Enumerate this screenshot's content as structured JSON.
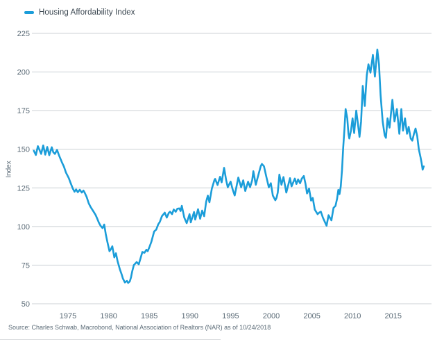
{
  "legend": {
    "label": "Housing Affordability Index"
  },
  "y_axis": {
    "title": "Index"
  },
  "source": "Source: Charles Schwab, Macrobond, National Association of Realtors (NAR) as of 10/24/2018",
  "colors": {
    "line": "#1b9dd9",
    "grid": "#ccd1d5",
    "tick_text": "#5a6a76",
    "legend_text": "#3a4650",
    "source_text": "#5a6a76"
  },
  "chart_data": {
    "type": "line",
    "title": "Housing Affordability Index",
    "xlabel": "",
    "ylabel": "Index",
    "legend_position": "top-left",
    "grid": "horizontal-only",
    "xlim": [
      1970.8,
      2019.3
    ],
    "ylim": [
      50,
      225
    ],
    "x_ticks": [
      1975,
      1980,
      1985,
      1990,
      1995,
      2000,
      2005,
      2010,
      2015
    ],
    "y_ticks": [
      50,
      75,
      100,
      125,
      150,
      175,
      200,
      225
    ],
    "source": "Source: Charles Schwab, Macrobond, National Association of Realtors (NAR) as of 10/24/2018",
    "series": [
      {
        "name": "Housing Affordability Index",
        "points": [
          [
            1970.8,
            149
          ],
          [
            1971.05,
            146.3
          ],
          [
            1971.3,
            152
          ],
          [
            1971.7,
            147
          ],
          [
            1971.95,
            152.5
          ],
          [
            1972.2,
            146.5
          ],
          [
            1972.45,
            151.5
          ],
          [
            1972.7,
            146.2
          ],
          [
            1973.0,
            151.3
          ],
          [
            1973.2,
            148
          ],
          [
            1973.4,
            147
          ],
          [
            1973.65,
            149.6
          ],
          [
            1973.9,
            146
          ],
          [
            1974.1,
            143.5
          ],
          [
            1974.25,
            141.6
          ],
          [
            1974.5,
            138.8
          ],
          [
            1974.75,
            134.9
          ],
          [
            1975.1,
            131.3
          ],
          [
            1975.3,
            128.5
          ],
          [
            1975.6,
            124.5
          ],
          [
            1975.8,
            122.5
          ],
          [
            1976.0,
            124
          ],
          [
            1976.2,
            122.2
          ],
          [
            1976.45,
            123.8
          ],
          [
            1976.7,
            122
          ],
          [
            1976.9,
            123.3
          ],
          [
            1977.05,
            122
          ],
          [
            1977.3,
            119
          ],
          [
            1977.55,
            115
          ],
          [
            1977.8,
            112.5
          ],
          [
            1978.15,
            109.6
          ],
          [
            1978.4,
            107.5
          ],
          [
            1978.6,
            105
          ],
          [
            1978.8,
            102.5
          ],
          [
            1979.0,
            100.5
          ],
          [
            1979.25,
            99
          ],
          [
            1979.45,
            101.3
          ],
          [
            1979.65,
            95
          ],
          [
            1979.85,
            90
          ],
          [
            1980.1,
            84
          ],
          [
            1980.3,
            85.5
          ],
          [
            1980.45,
            87.2
          ],
          [
            1980.7,
            80
          ],
          [
            1980.9,
            82.7
          ],
          [
            1981.1,
            77.5
          ],
          [
            1981.4,
            72
          ],
          [
            1981.6,
            69
          ],
          [
            1981.75,
            66.4
          ],
          [
            1982.0,
            63.8
          ],
          [
            1982.25,
            64.8
          ],
          [
            1982.4,
            63.5
          ],
          [
            1982.6,
            64.5
          ],
          [
            1982.75,
            67
          ],
          [
            1982.9,
            71
          ],
          [
            1983.1,
            75
          ],
          [
            1983.45,
            77
          ],
          [
            1983.7,
            75.5
          ],
          [
            1983.9,
            79
          ],
          [
            1984.15,
            83.5
          ],
          [
            1984.4,
            83
          ],
          [
            1984.65,
            85
          ],
          [
            1984.8,
            84
          ],
          [
            1985.0,
            86.5
          ],
          [
            1985.25,
            90
          ],
          [
            1985.6,
            96.8
          ],
          [
            1985.85,
            98
          ],
          [
            1986.1,
            101.4
          ],
          [
            1986.3,
            103
          ],
          [
            1986.55,
            106.7
          ],
          [
            1986.9,
            109
          ],
          [
            1987.15,
            105.8
          ],
          [
            1987.4,
            108.8
          ],
          [
            1987.55,
            109.6
          ],
          [
            1987.8,
            108
          ],
          [
            1988.0,
            111
          ],
          [
            1988.25,
            109.5
          ],
          [
            1988.45,
            111.5
          ],
          [
            1988.7,
            111.7
          ],
          [
            1988.85,
            110
          ],
          [
            1989.0,
            113.4
          ],
          [
            1989.3,
            105.8
          ],
          [
            1989.6,
            102.2
          ],
          [
            1989.95,
            108
          ],
          [
            1990.1,
            102.7
          ],
          [
            1990.5,
            109.4
          ],
          [
            1990.65,
            104.5
          ],
          [
            1991.0,
            111.2
          ],
          [
            1991.25,
            105
          ],
          [
            1991.5,
            110.3
          ],
          [
            1991.75,
            106.7
          ],
          [
            1992.0,
            116.1
          ],
          [
            1992.2,
            120
          ],
          [
            1992.4,
            115.7
          ],
          [
            1992.7,
            124.6
          ],
          [
            1993.0,
            130
          ],
          [
            1993.1,
            130.8
          ],
          [
            1993.4,
            126.9
          ],
          [
            1993.7,
            132.2
          ],
          [
            1993.9,
            128.6
          ],
          [
            1994.2,
            138
          ],
          [
            1994.45,
            130
          ],
          [
            1994.65,
            125.4
          ],
          [
            1995.0,
            129.1
          ],
          [
            1995.25,
            124.1
          ],
          [
            1995.5,
            120.1
          ],
          [
            1995.95,
            131.7
          ],
          [
            1996.3,
            125.4
          ],
          [
            1996.55,
            129.9
          ],
          [
            1996.8,
            123
          ],
          [
            1997.15,
            129
          ],
          [
            1997.4,
            125.5
          ],
          [
            1997.65,
            130
          ],
          [
            1997.8,
            135.8
          ],
          [
            1998.1,
            127
          ],
          [
            1998.4,
            133
          ],
          [
            1998.7,
            139
          ],
          [
            1998.85,
            140.5
          ],
          [
            1999.1,
            139
          ],
          [
            1999.4,
            132
          ],
          [
            1999.7,
            125.4
          ],
          [
            1999.95,
            128
          ],
          [
            2000.2,
            120
          ],
          [
            2000.5,
            117
          ],
          [
            2000.65,
            118.5
          ],
          [
            2000.8,
            122
          ],
          [
            2001.0,
            133.6
          ],
          [
            2001.25,
            127
          ],
          [
            2001.5,
            132
          ],
          [
            2001.85,
            122
          ],
          [
            2002.1,
            127
          ],
          [
            2002.3,
            131.3
          ],
          [
            2002.5,
            126
          ],
          [
            2002.7,
            128.5
          ],
          [
            2002.9,
            131
          ],
          [
            2003.1,
            127.5
          ],
          [
            2003.3,
            130.5
          ],
          [
            2003.55,
            128
          ],
          [
            2003.75,
            131
          ],
          [
            2004.0,
            132.7
          ],
          [
            2004.2,
            128
          ],
          [
            2004.4,
            121.4
          ],
          [
            2004.65,
            124.6
          ],
          [
            2004.9,
            116.8
          ],
          [
            2005.1,
            118.5
          ],
          [
            2005.35,
            111
          ],
          [
            2005.7,
            108
          ],
          [
            2005.9,
            109
          ],
          [
            2006.1,
            109.6
          ],
          [
            2006.35,
            105.8
          ],
          [
            2006.8,
            100.5
          ],
          [
            2007.05,
            107.3
          ],
          [
            2007.4,
            104
          ],
          [
            2007.65,
            112
          ],
          [
            2007.9,
            113.4
          ],
          [
            2008.1,
            118
          ],
          [
            2008.25,
            123.7
          ],
          [
            2008.4,
            121
          ],
          [
            2008.55,
            126
          ],
          [
            2008.7,
            136.6
          ],
          [
            2008.85,
            151
          ],
          [
            2009.0,
            163
          ],
          [
            2009.15,
            176
          ],
          [
            2009.35,
            170
          ],
          [
            2009.5,
            160
          ],
          [
            2009.6,
            157
          ],
          [
            2009.8,
            162
          ],
          [
            2010.0,
            170
          ],
          [
            2010.2,
            160.5
          ],
          [
            2010.45,
            175
          ],
          [
            2010.65,
            167
          ],
          [
            2010.85,
            158
          ],
          [
            2011.05,
            168
          ],
          [
            2011.25,
            191
          ],
          [
            2011.5,
            178
          ],
          [
            2011.75,
            198
          ],
          [
            2011.95,
            205
          ],
          [
            2012.2,
            199.6
          ],
          [
            2012.5,
            211
          ],
          [
            2012.75,
            197
          ],
          [
            2013.05,
            214.5
          ],
          [
            2013.25,
            205
          ],
          [
            2013.45,
            185
          ],
          [
            2013.7,
            168
          ],
          [
            2013.95,
            159
          ],
          [
            2014.1,
            157.4
          ],
          [
            2014.3,
            170
          ],
          [
            2014.55,
            164
          ],
          [
            2014.9,
            182
          ],
          [
            2015.15,
            168
          ],
          [
            2015.45,
            176
          ],
          [
            2015.75,
            160
          ],
          [
            2016.0,
            176
          ],
          [
            2016.2,
            162
          ],
          [
            2016.45,
            170
          ],
          [
            2016.7,
            160
          ],
          [
            2016.9,
            164.5
          ],
          [
            2017.15,
            157
          ],
          [
            2017.35,
            155.6
          ],
          [
            2017.55,
            160
          ],
          [
            2017.75,
            163.4
          ],
          [
            2017.95,
            158.5
          ],
          [
            2018.15,
            150
          ],
          [
            2018.35,
            145
          ],
          [
            2018.5,
            141
          ],
          [
            2018.62,
            136.8
          ],
          [
            2018.75,
            138.9
          ]
        ]
      }
    ]
  }
}
